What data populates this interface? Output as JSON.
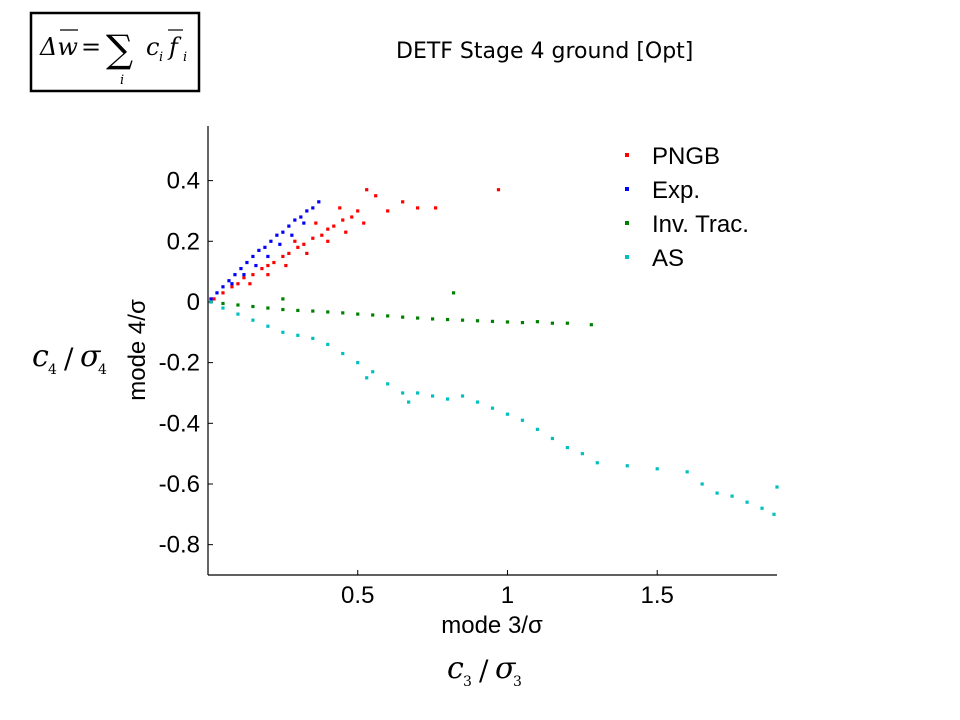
{
  "chart_data": {
    "type": "scatter",
    "title": "DETF Stage 4 ground [Opt]",
    "xlabel": "mode 3/σ",
    "ylabel": "mode 4/σ",
    "xlim": [
      0,
      1.9
    ],
    "ylim": [
      -0.9,
      0.58
    ],
    "xticks": [
      "0.5",
      "1",
      "1.5"
    ],
    "xtick_values": [
      0.5,
      1,
      1.5
    ],
    "yticks": [
      "0.4",
      "0.2",
      "0",
      "-0.2",
      "-0.4",
      "-0.6",
      "-0.8"
    ],
    "ytick_values": [
      0.4,
      0.2,
      0,
      -0.2,
      -0.4,
      -0.6,
      -0.8
    ],
    "legend_position": "top-right",
    "grid": false,
    "series": [
      {
        "name": "PNGB",
        "color": "#ff0000",
        "points": [
          [
            0.02,
            0.01
          ],
          [
            0.05,
            0.03
          ],
          [
            0.08,
            0.05
          ],
          [
            0.1,
            0.06
          ],
          [
            0.12,
            0.08
          ],
          [
            0.15,
            0.09
          ],
          [
            0.18,
            0.11
          ],
          [
            0.2,
            0.12
          ],
          [
            0.22,
            0.13
          ],
          [
            0.25,
            0.15
          ],
          [
            0.27,
            0.16
          ],
          [
            0.3,
            0.18
          ],
          [
            0.32,
            0.19
          ],
          [
            0.35,
            0.21
          ],
          [
            0.38,
            0.22
          ],
          [
            0.4,
            0.24
          ],
          [
            0.42,
            0.25
          ],
          [
            0.45,
            0.27
          ],
          [
            0.48,
            0.28
          ],
          [
            0.5,
            0.3
          ],
          [
            0.53,
            0.37
          ],
          [
            0.56,
            0.35
          ],
          [
            0.6,
            0.3
          ],
          [
            0.65,
            0.33
          ],
          [
            0.7,
            0.31
          ],
          [
            0.76,
            0.31
          ],
          [
            0.97,
            0.37
          ],
          [
            0.14,
            0.06
          ],
          [
            0.2,
            0.09
          ],
          [
            0.26,
            0.12
          ],
          [
            0.33,
            0.16
          ],
          [
            0.4,
            0.2
          ],
          [
            0.46,
            0.23
          ],
          [
            0.52,
            0.26
          ],
          [
            0.44,
            0.31
          ],
          [
            0.36,
            0.26
          ],
          [
            0.29,
            0.2
          ]
        ]
      },
      {
        "name": "Exp.",
        "color": "#0000ff",
        "points": [
          [
            0.01,
            0.01
          ],
          [
            0.03,
            0.03
          ],
          [
            0.05,
            0.05
          ],
          [
            0.07,
            0.07
          ],
          [
            0.09,
            0.09
          ],
          [
            0.11,
            0.11
          ],
          [
            0.13,
            0.13
          ],
          [
            0.15,
            0.15
          ],
          [
            0.17,
            0.17
          ],
          [
            0.19,
            0.18
          ],
          [
            0.21,
            0.2
          ],
          [
            0.23,
            0.22
          ],
          [
            0.25,
            0.23
          ],
          [
            0.27,
            0.25
          ],
          [
            0.29,
            0.27
          ],
          [
            0.31,
            0.28
          ],
          [
            0.33,
            0.3
          ],
          [
            0.35,
            0.31
          ],
          [
            0.37,
            0.33
          ],
          [
            0.32,
            0.26
          ],
          [
            0.28,
            0.22
          ],
          [
            0.24,
            0.19
          ],
          [
            0.2,
            0.15
          ],
          [
            0.16,
            0.12
          ],
          [
            0.12,
            0.09
          ],
          [
            0.08,
            0.06
          ]
        ]
      },
      {
        "name": "Inv. Trac.",
        "color": "#008000",
        "points": [
          [
            0.01,
            0.0
          ],
          [
            0.05,
            -0.005
          ],
          [
            0.1,
            -0.01
          ],
          [
            0.15,
            -0.015
          ],
          [
            0.2,
            -0.02
          ],
          [
            0.25,
            -0.025
          ],
          [
            0.3,
            -0.028
          ],
          [
            0.35,
            -0.03
          ],
          [
            0.4,
            -0.033
          ],
          [
            0.45,
            -0.036
          ],
          [
            0.5,
            -0.04
          ],
          [
            0.55,
            -0.043
          ],
          [
            0.6,
            -0.046
          ],
          [
            0.65,
            -0.05
          ],
          [
            0.7,
            -0.053
          ],
          [
            0.75,
            -0.056
          ],
          [
            0.8,
            -0.058
          ],
          [
            0.85,
            -0.06
          ],
          [
            0.9,
            -0.062
          ],
          [
            0.95,
            -0.064
          ],
          [
            1.0,
            -0.066
          ],
          [
            1.05,
            -0.068
          ],
          [
            1.1,
            -0.065
          ],
          [
            1.15,
            -0.07
          ],
          [
            1.2,
            -0.07
          ],
          [
            1.28,
            -0.075
          ],
          [
            0.25,
            0.01
          ],
          [
            0.82,
            0.03
          ]
        ]
      },
      {
        "name": "AS",
        "color": "#00bfbf",
        "points": [
          [
            0.01,
            0.0
          ],
          [
            0.05,
            -0.02
          ],
          [
            0.1,
            -0.04
          ],
          [
            0.15,
            -0.06
          ],
          [
            0.2,
            -0.08
          ],
          [
            0.25,
            -0.1
          ],
          [
            0.3,
            -0.11
          ],
          [
            0.35,
            -0.12
          ],
          [
            0.4,
            -0.14
          ],
          [
            0.45,
            -0.17
          ],
          [
            0.5,
            -0.2
          ],
          [
            0.55,
            -0.23
          ],
          [
            0.6,
            -0.27
          ],
          [
            0.65,
            -0.3
          ],
          [
            0.7,
            -0.3
          ],
          [
            0.75,
            -0.31
          ],
          [
            0.8,
            -0.32
          ],
          [
            0.85,
            -0.31
          ],
          [
            0.9,
            -0.33
          ],
          [
            0.95,
            -0.35
          ],
          [
            1.0,
            -0.37
          ],
          [
            1.05,
            -0.39
          ],
          [
            1.1,
            -0.42
          ],
          [
            1.15,
            -0.45
          ],
          [
            1.2,
            -0.48
          ],
          [
            1.25,
            -0.5
          ],
          [
            1.3,
            -0.53
          ],
          [
            1.4,
            -0.54
          ],
          [
            1.5,
            -0.55
          ],
          [
            1.6,
            -0.56
          ],
          [
            1.65,
            -0.6
          ],
          [
            1.7,
            -0.63
          ],
          [
            1.75,
            -0.64
          ],
          [
            1.8,
            -0.66
          ],
          [
            1.85,
            -0.68
          ],
          [
            1.89,
            -0.7
          ],
          [
            1.9,
            -0.61
          ],
          [
            0.53,
            -0.25
          ],
          [
            0.67,
            -0.33
          ]
        ]
      }
    ]
  },
  "formula": {
    "delta_w": "Δw",
    "equals": "=",
    "sum": "∑",
    "index": "i",
    "term_c": "c",
    "term_f": "f",
    "sub_i": "i"
  },
  "side_labels": {
    "y_c": "c",
    "y_c_sub": "4",
    "y_sigma": "σ",
    "y_sigma_sub": "4",
    "slash": "/",
    "x_c": "c",
    "x_c_sub": "3",
    "x_sigma": "σ",
    "x_sigma_sub": "3"
  }
}
